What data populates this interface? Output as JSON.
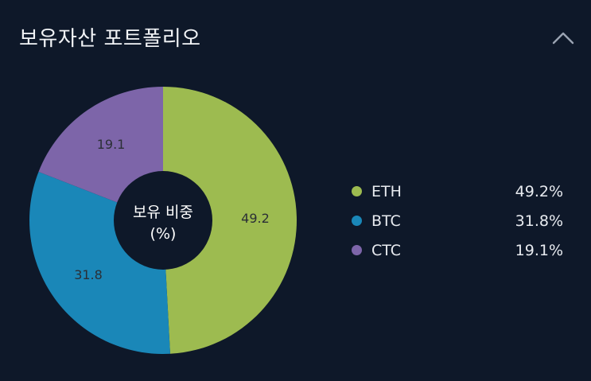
{
  "header": {
    "title": "보유자산 포트폴리오"
  },
  "icons": {
    "collapse": "chevron-up-icon"
  },
  "chart_data": {
    "type": "pie",
    "donut": true,
    "center_label_line1": "보유 비중",
    "center_label_line2": "(%)",
    "categories": [
      "ETH",
      "BTC",
      "CTC"
    ],
    "values": [
      49.2,
      31.8,
      19.1
    ],
    "slice_labels": [
      "49.2",
      "31.8",
      "19.1"
    ],
    "colors": [
      "#9dbb50",
      "#1a87b8",
      "#7d65a9"
    ],
    "legend_placement": "right"
  },
  "legend": [
    {
      "name": "ETH",
      "percent": "49.2%",
      "color": "#9dbb50"
    },
    {
      "name": "BTC",
      "percent": "31.8%",
      "color": "#1a87b8"
    },
    {
      "name": "CTC",
      "percent": "19.1%",
      "color": "#7d65a9"
    }
  ]
}
